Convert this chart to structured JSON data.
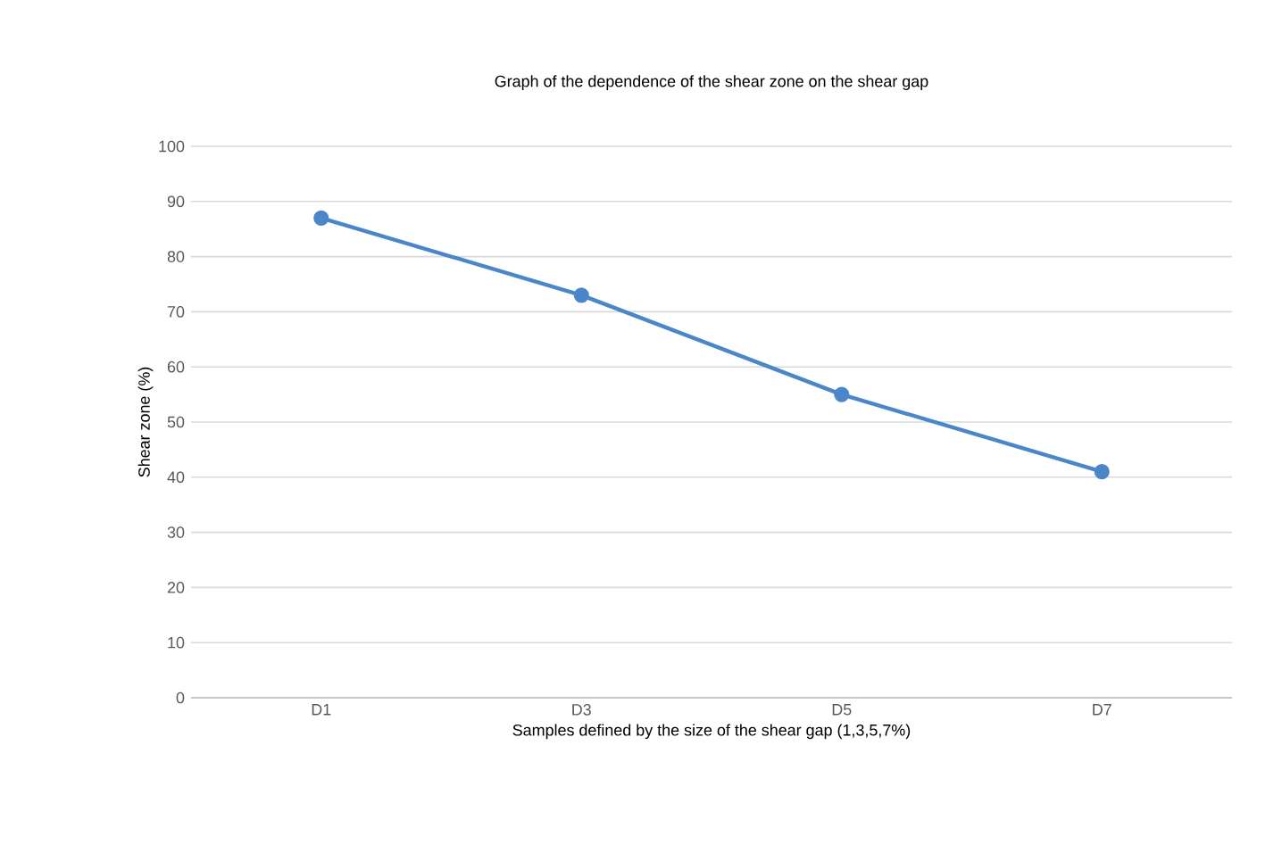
{
  "chart_data": {
    "type": "line",
    "title": "Graph of the dependence of the shear zone on the shear gap",
    "xlabel": "Samples defined by the size of the shear gap (1,3,5,7%)",
    "ylabel": "Shear zone (%)",
    "categories": [
      "D1",
      "D3",
      "D5",
      "D7"
    ],
    "series": [
      {
        "color": "#4a86c8",
        "values": [
          87,
          73,
          55,
          41
        ]
      }
    ],
    "ylim": [
      0,
      100
    ],
    "yticks": [
      0,
      10,
      20,
      30,
      40,
      50,
      60,
      70,
      80,
      90,
      100
    ],
    "grid": "y",
    "marker": "circle",
    "line_style": "solid"
  }
}
